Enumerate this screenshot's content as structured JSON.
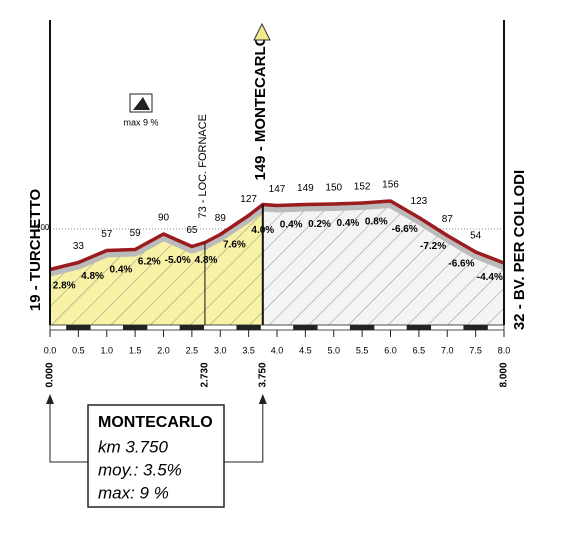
{
  "chart_data": {
    "type": "profile",
    "x": [
      0,
      0.5,
      1,
      1.5,
      2,
      2.5,
      2.73,
      3,
      3.5,
      3.75,
      4,
      4.5,
      5,
      5.5,
      6,
      6.5,
      7,
      7.5,
      8
    ],
    "values": [
      19,
      33,
      57,
      59,
      90,
      65,
      73,
      89,
      127,
      149,
      147,
      149,
      150,
      152,
      156,
      123,
      87,
      54,
      32
    ],
    "xlim": [
      0,
      8
    ],
    "ylim": [
      -100,
      250
    ],
    "xticks": [
      {
        "value": 0,
        "label": "0.0"
      },
      0.5,
      {
        "value": 1,
        "label": "1.0"
      },
      1.5,
      {
        "value": 2,
        "label": "2.0"
      },
      2.5,
      {
        "value": 3,
        "label": "3.0"
      },
      3.5,
      {
        "value": 4,
        "label": "4.0"
      },
      4.5,
      {
        "value": 5,
        "label": "5.0"
      },
      5.5,
      {
        "value": 6,
        "label": "6.0"
      },
      6.5,
      {
        "value": 7,
        "label": "7.0"
      },
      7.5,
      {
        "value": 8,
        "label": "8.0"
      }
    ],
    "reference": 100,
    "grade_labels": [
      "2.8%",
      "4.8%",
      "0.4%",
      "6.2%",
      "-5.0%",
      "4.8%",
      "7.6%",
      "4.0%",
      "0.4%",
      "0.2%",
      "0.4%",
      "0.8%",
      "-6.6%",
      "-7.2%",
      "-6.6%",
      "-4.4%"
    ],
    "markers": [
      {
        "value": 0,
        "label": "0.000"
      },
      {
        "value": 2.73,
        "label": "2.730"
      },
      {
        "value": 3.75,
        "label": "3.750"
      },
      {
        "value": 8,
        "label": "8.000"
      }
    ],
    "place_labels": [
      "19 - TURCHETTO",
      "73 - LOC. FORNACE",
      "149 - MONTECARLO",
      "32 - BV. PER COLLODI"
    ],
    "max_icon_label": "max 9 %",
    "info": {
      "title": "MONTECARLO",
      "lines": [
        "km 3.750",
        "moy.: 3.5%",
        "max: 9 %"
      ]
    },
    "color": "#9b1b1f",
    "climb_color": "#f7f2a6"
  }
}
